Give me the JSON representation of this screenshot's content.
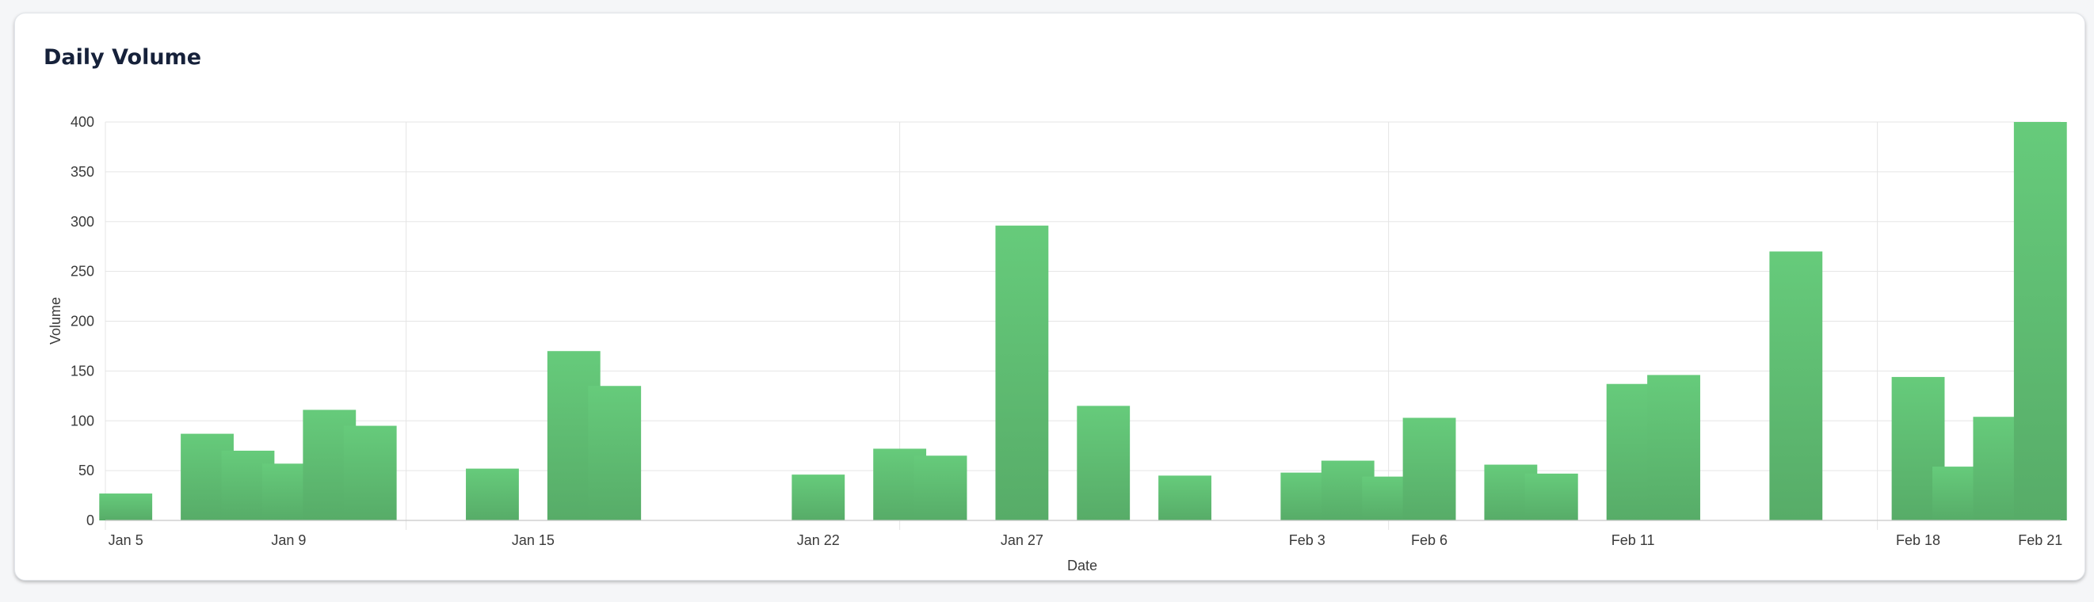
{
  "card": {
    "title": "Daily Volume"
  },
  "colors": {
    "bar_top": "#66cb7b",
    "bar_bottom": "#57ac68",
    "grid": "#e5e5e5",
    "axis": "#c8c8c8"
  },
  "chart_data": {
    "type": "bar",
    "title": "Daily Volume",
    "xlabel": "Date",
    "ylabel": "Volume",
    "ylim": [
      0,
      400
    ],
    "yticks": [
      0,
      50,
      100,
      150,
      200,
      250,
      300,
      350,
      400
    ],
    "grid": true,
    "categories": [
      "Jan 5",
      "Jan 6",
      "Jan 7",
      "Jan 8",
      "Jan 9",
      "Jan 10",
      "Jan 11",
      "Jan 12",
      "Jan 13",
      "Jan 14",
      "Jan 15",
      "Jan 16",
      "Jan 17",
      "Jan 18",
      "Jan 19",
      "Jan 20",
      "Jan 21",
      "Jan 22",
      "Jan 23",
      "Jan 24",
      "Jan 25",
      "Jan 26",
      "Jan 27",
      "Jan 28",
      "Jan 29",
      "Jan 30",
      "Jan 31",
      "Feb 1",
      "Feb 2",
      "Feb 3",
      "Feb 4",
      "Feb 5",
      "Feb 6",
      "Feb 7",
      "Feb 8",
      "Feb 9",
      "Feb 10",
      "Feb 11",
      "Feb 12",
      "Feb 13",
      "Feb 14",
      "Feb 15",
      "Feb 16",
      "Feb 17",
      "Feb 18",
      "Feb 19",
      "Feb 20",
      "Feb 21"
    ],
    "xticks": [
      "Jan 5",
      "Jan 9",
      "Jan 15",
      "Jan 22",
      "Jan 27",
      "Feb 3",
      "Feb 6",
      "Feb 11",
      "Feb 18",
      "Feb 21"
    ],
    "bars": [
      {
        "date": "Jan 5",
        "value": 27
      },
      {
        "date": "Jan 7",
        "value": 87
      },
      {
        "date": "Jan 8",
        "value": 70
      },
      {
        "date": "Jan 9",
        "value": 57
      },
      {
        "date": "Jan 10",
        "value": 111
      },
      {
        "date": "Jan 11",
        "value": 95
      },
      {
        "date": "Jan 14",
        "value": 52
      },
      {
        "date": "Jan 16",
        "value": 170
      },
      {
        "date": "Jan 17",
        "value": 135
      },
      {
        "date": "Jan 22",
        "value": 46
      },
      {
        "date": "Jan 24",
        "value": 72
      },
      {
        "date": "Jan 25",
        "value": 65
      },
      {
        "date": "Jan 27",
        "value": 296
      },
      {
        "date": "Jan 29",
        "value": 115
      },
      {
        "date": "Jan 31",
        "value": 45
      },
      {
        "date": "Feb 3",
        "value": 48
      },
      {
        "date": "Feb 4",
        "value": 60
      },
      {
        "date": "Feb 5",
        "value": 44
      },
      {
        "date": "Feb 6",
        "value": 103
      },
      {
        "date": "Feb 8",
        "value": 56
      },
      {
        "date": "Feb 9",
        "value": 47
      },
      {
        "date": "Feb 11",
        "value": 137
      },
      {
        "date": "Feb 12",
        "value": 146
      },
      {
        "date": "Feb 15",
        "value": 270
      },
      {
        "date": "Feb 18",
        "value": 144
      },
      {
        "date": "Feb 19",
        "value": 54
      },
      {
        "date": "Feb 20",
        "value": 104
      },
      {
        "date": "Feb 21",
        "value": 400
      }
    ]
  }
}
